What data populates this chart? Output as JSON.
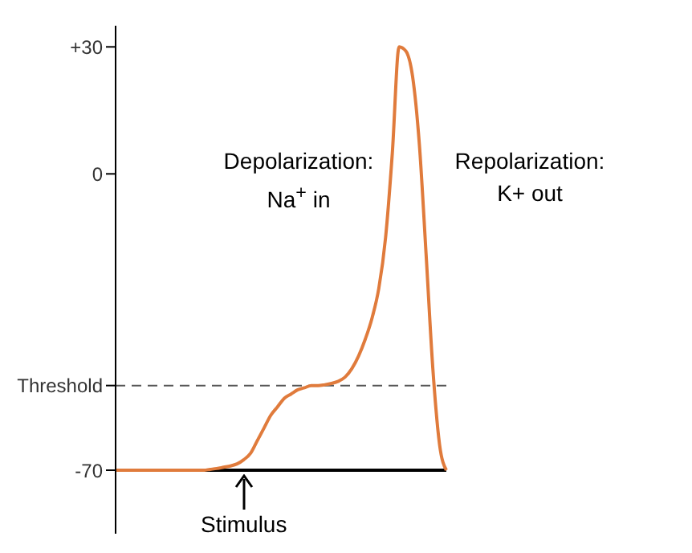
{
  "chart_data": {
    "type": "line",
    "categories": [
      null,
      null,
      null,
      null,
      null,
      null,
      null,
      null,
      null,
      null,
      null,
      null,
      null,
      null,
      null,
      null,
      null,
      null,
      null,
      null,
      null,
      null,
      null,
      null,
      null,
      null,
      null,
      null,
      null,
      null,
      null,
      null,
      null,
      null,
      null,
      null,
      null,
      null,
      null,
      null,
      null,
      null,
      null,
      null,
      null,
      null,
      null,
      null,
      null,
      null
    ],
    "series": [
      {
        "color": "#e07b3c",
        "values": [
          -70,
          -70,
          -70,
          -70,
          -70,
          -70,
          -70,
          -70,
          -70,
          -70,
          -70,
          -70,
          -70,
          -70,
          -69.8,
          -69.6,
          -69.3,
          -69,
          -68.5,
          -67.5,
          -66,
          -63,
          -60,
          -57,
          -55,
          -53,
          -52,
          -51,
          -50.5,
          -50,
          -50,
          -49.8,
          -49.5,
          -49,
          -48,
          -46,
          -43,
          -39,
          -34,
          -27,
          -15,
          5,
          30,
          29,
          23,
          7,
          -19,
          -46,
          -64,
          -70
        ]
      }
    ],
    "ylim": [
      -85,
      35
    ],
    "yticks": [
      {
        "value": 30,
        "label": "+30"
      },
      0,
      {
        "value": -50,
        "label": "Threshold"
      },
      -70
    ],
    "tick_labels": "y",
    "marker": "none",
    "line_style": "solid",
    "ref_lines": [
      {
        "axis": "y",
        "value": -70,
        "label": null,
        "color": "#000000",
        "line_style": "solid"
      },
      {
        "axis": "y",
        "value": -50,
        "label": null,
        "color": "#555555",
        "line_style": "dashed"
      }
    ],
    "annotations": [
      "Depolarization:\nNa$^{+}$ in",
      "Repolarization:\nK+ out",
      "Stimulus"
    ]
  }
}
